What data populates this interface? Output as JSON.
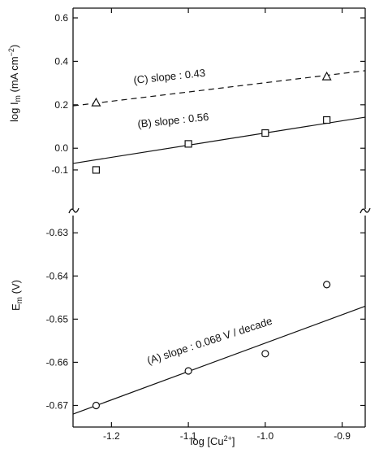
{
  "chart_data": [
    {
      "panel": "upper",
      "type": "scatter",
      "ylabel_prefix": "log ",
      "ylabel_main": "I",
      "ylabel_sub": "m",
      "ylabel_units_open": " (mA cm",
      "ylabel_units_sup": "−2",
      "ylabel_units_close": ")",
      "ylim": [
        -0.28,
        0.6
      ],
      "xlim": [
        -1.25,
        -0.87
      ],
      "yticks": [
        {
          "value": 0.6,
          "label": "0.6"
        },
        {
          "value": 0.4,
          "label": "0.4"
        },
        {
          "value": 0.2,
          "label": "0.2"
        },
        {
          "value": 0.0,
          "label": "0.0"
        },
        {
          "value": -0.1,
          "label": "-0.1"
        }
      ],
      "series": [
        {
          "name": "(C)",
          "annotation": "(C)   slope  :  0.43",
          "marker": "triangle",
          "line_style": "dashed",
          "points": [
            {
              "x": -1.22,
              "y": 0.21
            },
            {
              "x": -0.92,
              "y": 0.33
            }
          ],
          "fit": {
            "x": [
              -1.25,
              -0.87
            ],
            "y": [
              0.195,
              0.357
            ]
          }
        },
        {
          "name": "(B)",
          "annotation": "(B)   slope  :  0.56",
          "marker": "square",
          "line_style": "solid",
          "points": [
            {
              "x": -1.22,
              "y": -0.1
            },
            {
              "x": -1.1,
              "y": 0.02
            },
            {
              "x": -1.0,
              "y": 0.07
            },
            {
              "x": -0.92,
              "y": 0.13
            }
          ],
          "fit": {
            "x": [
              -1.25,
              -0.87
            ],
            "y": [
              -0.07,
              0.143
            ]
          }
        }
      ]
    },
    {
      "panel": "lower",
      "type": "scatter",
      "ylabel_main": "E",
      "ylabel_sub": "m",
      "ylabel_units": " (V)",
      "ylim": [
        -0.675,
        -0.626
      ],
      "xlim": [
        -1.25,
        -0.87
      ],
      "yticks": [
        {
          "value": -0.63,
          "label": "-0.63"
        },
        {
          "value": -0.64,
          "label": "-0.64"
        },
        {
          "value": -0.65,
          "label": "-0.65"
        },
        {
          "value": -0.66,
          "label": "-0.66"
        },
        {
          "value": -0.67,
          "label": "-0.67"
        }
      ],
      "xticks": [
        {
          "value": -1.2,
          "label": "-1.2"
        },
        {
          "value": -1.1,
          "label": "-1.1"
        },
        {
          "value": -1.0,
          "label": "-1.0"
        },
        {
          "value": -0.9,
          "label": "-0.9"
        }
      ],
      "xlabel_prefix": "log [Cu",
      "xlabel_sup": "2+",
      "xlabel_suffix": "]",
      "series": [
        {
          "name": "(A)",
          "annotation": "(A)   slope  :  0.068 V / decade",
          "marker": "circle",
          "line_style": "solid",
          "points": [
            {
              "x": -1.22,
              "y": -0.67
            },
            {
              "x": -1.1,
              "y": -0.662
            },
            {
              "x": -1.0,
              "y": -0.658
            },
            {
              "x": -0.92,
              "y": -0.642
            }
          ],
          "fit": {
            "x": [
              -1.25,
              -0.87
            ],
            "y": [
              -0.672,
              -0.647
            ]
          }
        }
      ]
    }
  ]
}
